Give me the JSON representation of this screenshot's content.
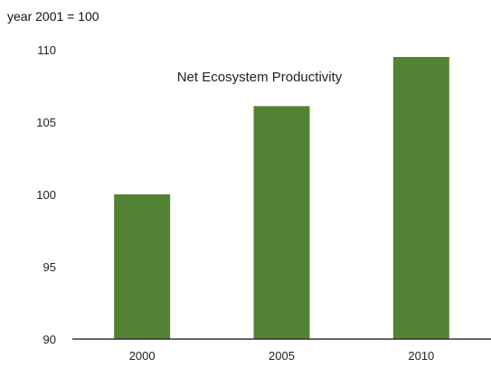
{
  "chart_data": {
    "type": "bar",
    "title": "Net Ecosystem Productivity",
    "ylabel": "year 2001 = 100",
    "xlabel": "",
    "categories": [
      "2000",
      "2005",
      "2010"
    ],
    "values": [
      100.0,
      106.1,
      109.5
    ],
    "ylim": [
      90,
      110
    ],
    "yticks": [
      90,
      95,
      100,
      105,
      110
    ],
    "grid": false,
    "bar_color": "#548235"
  }
}
